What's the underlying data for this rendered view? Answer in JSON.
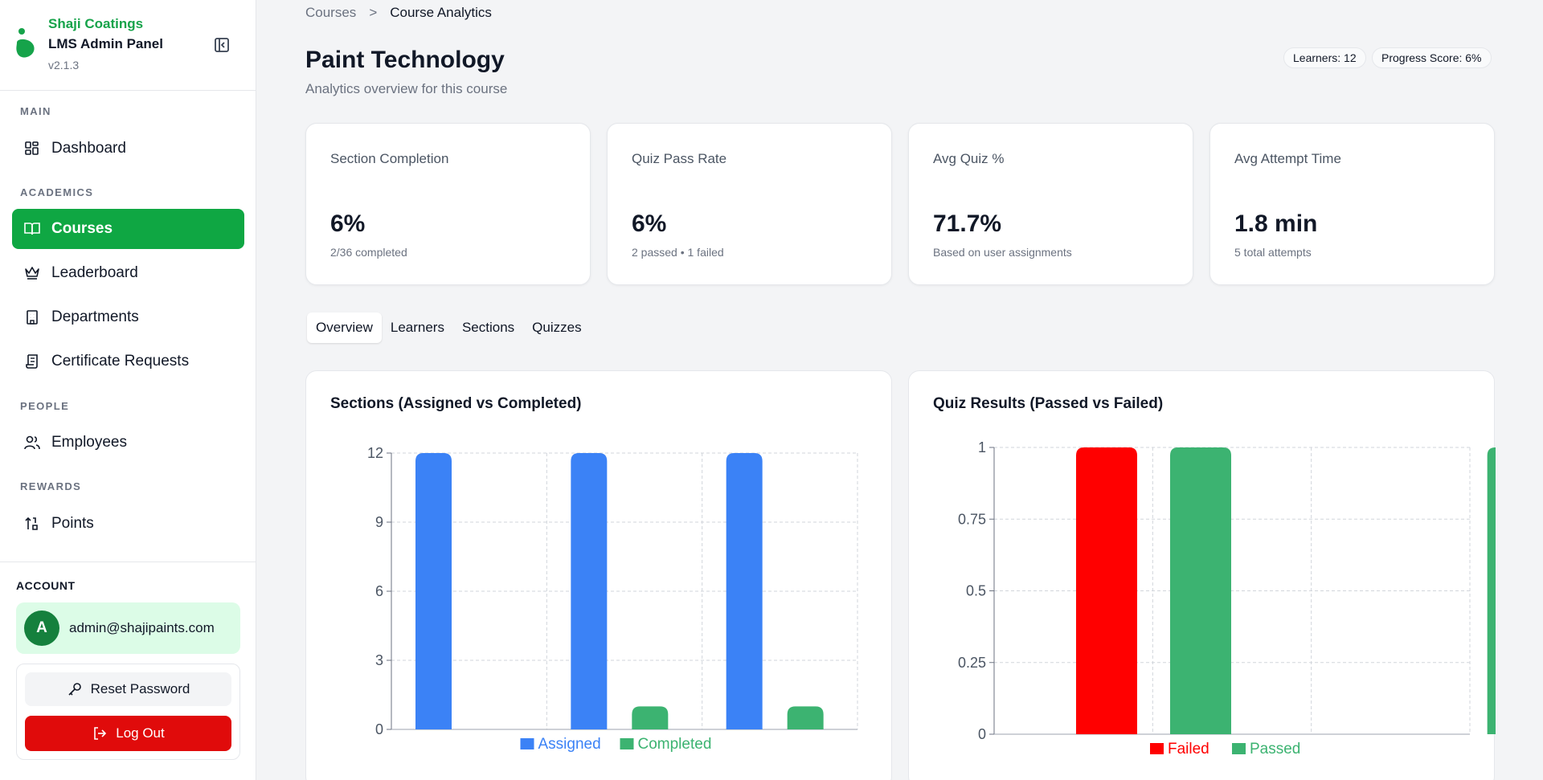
{
  "brand": {
    "company": "Shaji Coatings",
    "title": "LMS Admin Panel",
    "version": "v2.1.3"
  },
  "sidebar": {
    "sections": {
      "main": "MAIN",
      "academics": "ACADEMICS",
      "people": "PEOPLE",
      "rewards": "REWARDS"
    },
    "items": [
      {
        "label": "Dashboard",
        "icon": "dashboard-icon"
      },
      {
        "label": "Courses",
        "icon": "book-icon",
        "active": true
      },
      {
        "label": "Leaderboard",
        "icon": "crown-icon"
      },
      {
        "label": "Departments",
        "icon": "building-icon"
      },
      {
        "label": "Certificate Requests",
        "icon": "scroll-icon"
      },
      {
        "label": "Employees",
        "icon": "users-icon"
      },
      {
        "label": "Points",
        "icon": "sort-icon"
      }
    ]
  },
  "account": {
    "label": "ACCOUNT",
    "avatar": "A",
    "email": "admin@shajipaints.com",
    "reset_label": "Reset Password",
    "logout_label": "Log Out"
  },
  "breadcrumb": {
    "parent": "Courses",
    "separator": ">",
    "current": "Course Analytics"
  },
  "page": {
    "title": "Paint Technology",
    "subtitle": "Analytics overview for this course",
    "learners_pill": "Learners: 12",
    "progress_pill": "Progress Score: 6%"
  },
  "stats": [
    {
      "label": "Section Completion",
      "value": "6%",
      "sub": "2/36 completed"
    },
    {
      "label": "Quiz Pass Rate",
      "value": "6%",
      "sub": "2 passed • 1 failed"
    },
    {
      "label": "Avg Quiz %",
      "value": "71.7%",
      "sub": "Based on user assignments"
    },
    {
      "label": "Avg Attempt Time",
      "value": "1.8 min",
      "sub": "5 total attempts"
    }
  ],
  "tabs": [
    {
      "label": "Overview",
      "active": true
    },
    {
      "label": "Learners"
    },
    {
      "label": "Sections"
    },
    {
      "label": "Quizzes"
    }
  ],
  "colors": {
    "accent": "#0fa743",
    "assigned": "#3b82f6",
    "completed": "#3cb371",
    "failed": "#ff0000",
    "passed": "#3cb371",
    "logout": "#e00b0b"
  },
  "chart_data": [
    {
      "type": "bar",
      "title": "Sections (Assigned vs Completed)",
      "categories": [
        "",
        "",
        ""
      ],
      "series": [
        {
          "name": "Assigned",
          "values": [
            12,
            12,
            12
          ],
          "color": "#3b82f6"
        },
        {
          "name": "Completed",
          "values": [
            0,
            1,
            1
          ],
          "color": "#3cb371"
        }
      ],
      "ylim": [
        0,
        12
      ],
      "yticks": [
        0,
        3,
        6,
        9,
        12
      ],
      "grid": true,
      "legend": "bottom-center"
    },
    {
      "type": "bar",
      "title": "Quiz Results (Passed vs Failed)",
      "categories": [
        "",
        "",
        ""
      ],
      "series": [
        {
          "name": "Failed",
          "values": [
            1,
            0,
            0
          ],
          "color": "#ff0000"
        },
        {
          "name": "Passed",
          "values": [
            1,
            0,
            1
          ],
          "color": "#3cb371"
        }
      ],
      "ylim": [
        0,
        1
      ],
      "yticks": [
        0,
        0.25,
        0.5,
        0.75,
        1
      ],
      "grid": true,
      "legend": "bottom-center"
    }
  ]
}
